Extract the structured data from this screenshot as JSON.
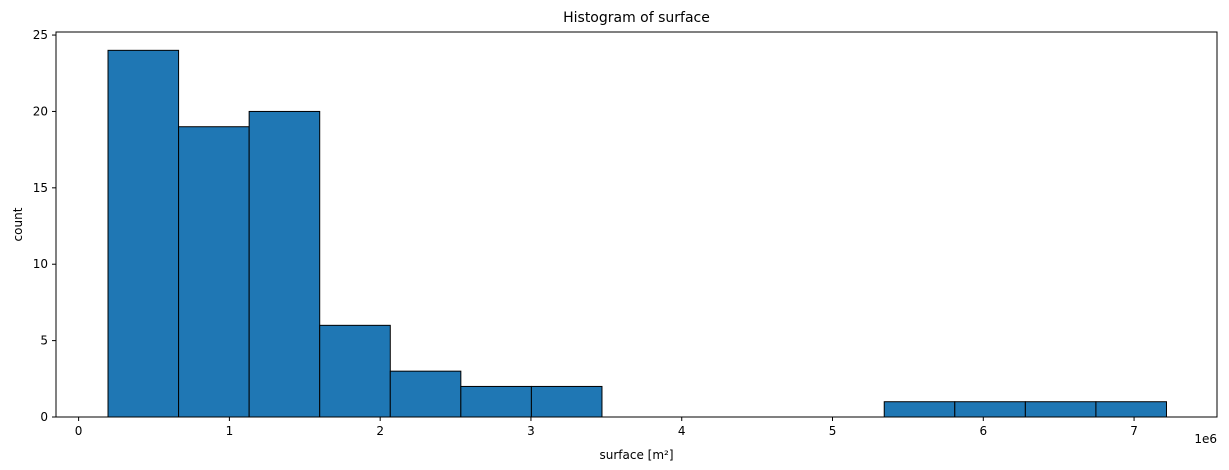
{
  "chart_data": {
    "type": "bar",
    "title": "Histogram of surface",
    "xlabel": "surface [m²]",
    "ylabel": "count",
    "x_offset_label": "1e6",
    "xlim": [
      -0.15,
      7.55
    ],
    "ylim": [
      0,
      25.2
    ],
    "x_ticks": [
      0,
      1,
      2,
      3,
      4,
      5,
      6,
      7
    ],
    "x_tick_labels": [
      "0",
      "1",
      "2",
      "3",
      "4",
      "5",
      "6",
      "7"
    ],
    "y_ticks": [
      0,
      5,
      10,
      15,
      20,
      25
    ],
    "y_tick_labels": [
      "0",
      "5",
      "10",
      "15",
      "20",
      "25"
    ],
    "bin_edges": [
      0.195,
      0.663,
      1.131,
      1.599,
      2.067,
      2.535,
      3.003,
      3.471,
      3.939,
      4.407,
      4.875,
      5.343,
      5.811,
      6.279,
      6.747,
      7.215
    ],
    "values": [
      24,
      19,
      20,
      6,
      3,
      2,
      2,
      0,
      0,
      0,
      0,
      1,
      1,
      1,
      1
    ],
    "bar_color": "#1f77b4",
    "edge_color": "#000000",
    "grid": false
  }
}
